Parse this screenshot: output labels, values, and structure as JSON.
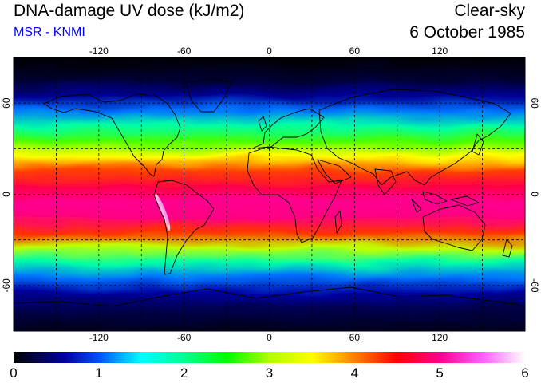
{
  "header": {
    "title": "DNA-damage UV dose (kJ/m2)",
    "subtitle": "MSR - KNMI",
    "condition": "Clear-sky",
    "date": "6 October 1985"
  },
  "colors": {
    "subtitle": "#0000ff",
    "frame": "#000000",
    "background": "#ffffff"
  },
  "map": {
    "projection": "equirectangular",
    "lon_range": [
      -180,
      180
    ],
    "lat_range": [
      -90,
      90
    ],
    "gridlines": "dashed, every 30 degrees",
    "coastlines": true,
    "lon_tick_labels": [
      "-120",
      "-60",
      "0",
      "60",
      "120"
    ],
    "lon_tick_values": [
      -120,
      -60,
      0,
      60,
      120
    ],
    "lat_tick_labels": [
      "60",
      "0",
      "-60"
    ],
    "lat_tick_values": [
      60,
      0,
      -60
    ],
    "field_profile": [
      {
        "lat": 90,
        "dose": 0.0
      },
      {
        "lat": 75,
        "dose": 0.2
      },
      {
        "lat": 65,
        "dose": 0.55
      },
      {
        "lat": 55,
        "dose": 1.1
      },
      {
        "lat": 45,
        "dose": 1.9
      },
      {
        "lat": 35,
        "dose": 2.7
      },
      {
        "lat": 25,
        "dose": 3.5
      },
      {
        "lat": 15,
        "dose": 4.25
      },
      {
        "lat": 5,
        "dose": 4.75
      },
      {
        "lat": -5,
        "dose": 5.0
      },
      {
        "lat": -15,
        "dose": 4.95
      },
      {
        "lat": -25,
        "dose": 4.3
      },
      {
        "lat": -35,
        "dose": 3.1
      },
      {
        "lat": -45,
        "dose": 1.9
      },
      {
        "lat": -55,
        "dose": 1.1
      },
      {
        "lat": -65,
        "dose": 0.6
      },
      {
        "lat": -75,
        "dose": 0.3
      },
      {
        "lat": -90,
        "dose": 0.1
      }
    ]
  },
  "colorbar": {
    "min": 0,
    "max": 6,
    "labels": [
      "0",
      "1",
      "2",
      "3",
      "4",
      "5",
      "6"
    ],
    "stops": [
      {
        "v": 0.0,
        "c": "#000000"
      },
      {
        "v": 0.6,
        "c": "#0000a0"
      },
      {
        "v": 1.0,
        "c": "#0050ff"
      },
      {
        "v": 1.5,
        "c": "#00ffff"
      },
      {
        "v": 2.0,
        "c": "#00ff90"
      },
      {
        "v": 2.5,
        "c": "#00ff00"
      },
      {
        "v": 3.0,
        "c": "#b0ff00"
      },
      {
        "v": 3.5,
        "c": "#ffff00"
      },
      {
        "v": 4.0,
        "c": "#ff8000"
      },
      {
        "v": 4.5,
        "c": "#ff0000"
      },
      {
        "v": 5.0,
        "c": "#ff0090"
      },
      {
        "v": 5.5,
        "c": "#ff60ff"
      },
      {
        "v": 6.0,
        "c": "#ffffff"
      }
    ]
  }
}
